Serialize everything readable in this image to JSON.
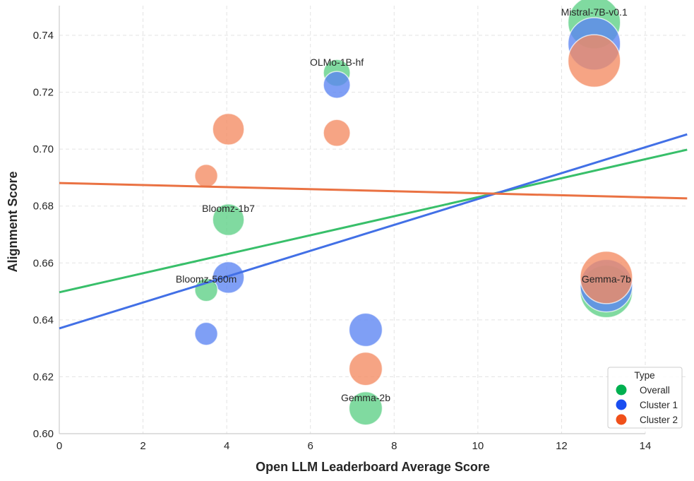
{
  "chart_data": {
    "type": "scatter",
    "title": "",
    "xlabel": "Open LLM Leaderboard Average Score",
    "ylabel": "Alignment Score",
    "xlim": [
      0,
      15
    ],
    "ylim": [
      0.6,
      0.75
    ],
    "xticks": [
      "0",
      "2",
      "4",
      "6",
      "8",
      "10",
      "12",
      "14"
    ],
    "xtick_values": [
      0,
      2,
      4,
      6,
      8,
      10,
      12,
      14
    ],
    "yticks": [
      "0.60",
      "0.62",
      "0.64",
      "0.66",
      "0.68",
      "0.70",
      "0.72",
      "0.74"
    ],
    "ytick_values": [
      0.6,
      0.62,
      0.64,
      0.66,
      0.68,
      0.7,
      0.72,
      0.74
    ],
    "grid": true,
    "legend": {
      "title": "Type",
      "placement": "bottom-right",
      "entries": [
        {
          "label": "Overall",
          "color": "#00b050"
        },
        {
          "label": "Cluster 1",
          "color": "#1a4ef0"
        },
        {
          "label": "Cluster 2",
          "color": "#f0501a"
        }
      ]
    },
    "bubble_size_meaning": "model size (relative)",
    "series": [
      {
        "name": "Overall",
        "fill": "#5ccf85",
        "line_color": "#38bf6a",
        "points": [
          {
            "model": "Mistral-7B-v0.1",
            "x": 12.78,
            "y": 0.7445,
            "size": 7
          },
          {
            "model": "OLMo-1B-hf",
            "x": 6.63,
            "y": 0.7268,
            "size": 1
          },
          {
            "model": "Bloomz-1b7",
            "x": 4.04,
            "y": 0.6752,
            "size": 1.7
          },
          {
            "model": "Bloomz-560m",
            "x": 3.51,
            "y": 0.6505,
            "size": 0.56
          },
          {
            "model": "Gemma-7b",
            "x": 13.07,
            "y": 0.65,
            "size": 7
          },
          {
            "model": "Gemma-2b",
            "x": 7.32,
            "y": 0.6089,
            "size": 2
          }
        ],
        "trend": {
          "x": [
            0,
            15
          ],
          "y": [
            0.6497,
            0.6998
          ]
        }
      },
      {
        "name": "Cluster 1",
        "fill": "#5b84f2",
        "line_color": "#4270e6",
        "points": [
          {
            "model": "Mistral-7B-v0.1",
            "x": 12.78,
            "y": 0.737,
            "size": 7
          },
          {
            "model": "OLMo-1B-hf",
            "x": 6.63,
            "y": 0.7226,
            "size": 1
          },
          {
            "model": "Bloomz-1b7",
            "x": 4.04,
            "y": 0.6549,
            "size": 1.7
          },
          {
            "model": "Bloomz-560m",
            "x": 3.51,
            "y": 0.6351,
            "size": 0.56
          },
          {
            "model": "Gemma-7b",
            "x": 13.07,
            "y": 0.652,
            "size": 7
          },
          {
            "model": "Gemma-2b",
            "x": 7.32,
            "y": 0.6365,
            "size": 2
          }
        ],
        "trend": {
          "x": [
            0,
            15
          ],
          "y": [
            0.637,
            0.7052
          ]
        }
      },
      {
        "name": "Cluster 2",
        "fill": "#f38a62",
        "line_color": "#ea7243",
        "points": [
          {
            "model": "Mistral-7B-v0.1",
            "x": 12.78,
            "y": 0.731,
            "size": 7
          },
          {
            "model": "OLMo-1B-hf",
            "x": 6.63,
            "y": 0.7057,
            "size": 1
          },
          {
            "model": "Bloomz-1b7",
            "x": 4.04,
            "y": 0.707,
            "size": 1.7
          },
          {
            "model": "Bloomz-560m",
            "x": 3.51,
            "y": 0.6906,
            "size": 0.56
          },
          {
            "model": "Gemma-7b",
            "x": 13.07,
            "y": 0.6549,
            "size": 7
          },
          {
            "model": "Gemma-2b",
            "x": 7.32,
            "y": 0.6228,
            "size": 2
          }
        ],
        "trend": {
          "x": [
            0,
            15
          ],
          "y": [
            0.6881,
            0.6827
          ]
        }
      }
    ],
    "annotations": [
      {
        "text": "Mistral-7B-v0.1",
        "x": 12.78,
        "y": 0.7445
      },
      {
        "text": "OLMo-1B-hf",
        "x": 6.63,
        "y": 0.7268
      },
      {
        "text": "Bloomz-1b7",
        "x": 4.04,
        "y": 0.6752
      },
      {
        "text": "Bloomz-560m",
        "x": 3.51,
        "y": 0.6505
      },
      {
        "text": "Gemma-7b",
        "x": 13.07,
        "y": 0.65
      },
      {
        "text": "Gemma-2b",
        "x": 7.32,
        "y": 0.6089
      }
    ]
  }
}
